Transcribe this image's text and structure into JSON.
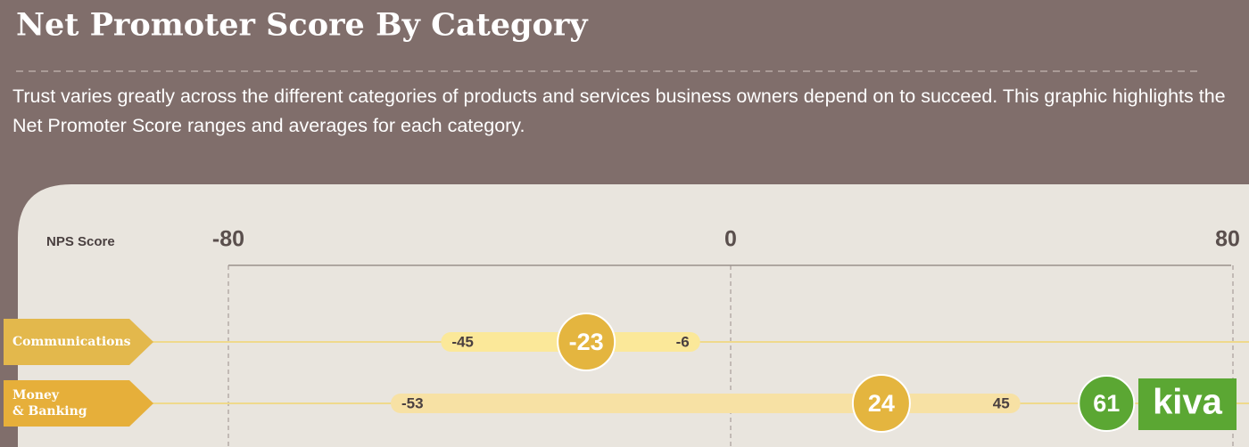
{
  "chart_data": {
    "type": "range",
    "title": "Net Promoter Score By Category",
    "subtitle": "Trust varies greatly across the different categories of products and services business owners depend on to succeed. This graphic highlights the Net Promoter Score ranges and averages for each category.",
    "axis_label": "NPS Score",
    "xlim": [
      -80,
      80
    ],
    "xticks": [
      -80,
      0,
      80
    ],
    "categories": [
      "Communications",
      "Money & Banking"
    ],
    "low": [
      -45,
      -53
    ],
    "average": [
      -23,
      24
    ],
    "high": [
      -6,
      45
    ],
    "category_colors": [
      "#e3b84c",
      "#e6af3a"
    ],
    "range_colors": [
      "#fbe899",
      "#f7e1a4"
    ],
    "average_color": "#e4b53f",
    "benchmark": {
      "name": "kiva",
      "value": 61,
      "color": "#5ba733"
    }
  }
}
